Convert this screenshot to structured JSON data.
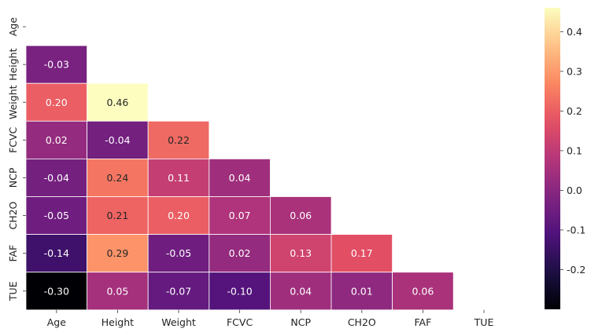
{
  "chart_data": {
    "type": "heatmap",
    "title": "",
    "xlabel": "",
    "ylabel": "",
    "mask": "upper-triangle",
    "categories": [
      "Age",
      "Height",
      "Weight",
      "FCVC",
      "NCP",
      "CH2O",
      "FAF",
      "TUE"
    ],
    "values": [
      [
        null,
        null,
        null,
        null,
        null,
        null,
        null,
        null
      ],
      [
        -0.03,
        null,
        null,
        null,
        null,
        null,
        null,
        null
      ],
      [
        0.2,
        0.46,
        null,
        null,
        null,
        null,
        null,
        null
      ],
      [
        0.02,
        -0.04,
        0.22,
        null,
        null,
        null,
        null,
        null
      ],
      [
        -0.04,
        0.24,
        0.11,
        0.04,
        null,
        null,
        null,
        null
      ],
      [
        -0.05,
        0.21,
        0.2,
        0.07,
        0.06,
        null,
        null,
        null
      ],
      [
        -0.14,
        0.29,
        -0.05,
        0.02,
        0.13,
        0.17,
        null,
        null
      ],
      [
        -0.3,
        0.05,
        -0.07,
        -0.1,
        0.04,
        0.01,
        0.06,
        null
      ]
    ],
    "value_format": "2 decimals",
    "colormap": "magma",
    "colorbar": {
      "min": -0.3,
      "max": 0.46,
      "ticks": [
        "-0.2",
        "-0.1",
        "0.0",
        "0.1",
        "0.2",
        "0.3",
        "0.4"
      ],
      "tick_values": [
        -0.2,
        -0.1,
        0.0,
        0.1,
        0.2,
        0.3,
        0.4
      ]
    },
    "cell_border_color": "#ffffff",
    "grid": false
  }
}
